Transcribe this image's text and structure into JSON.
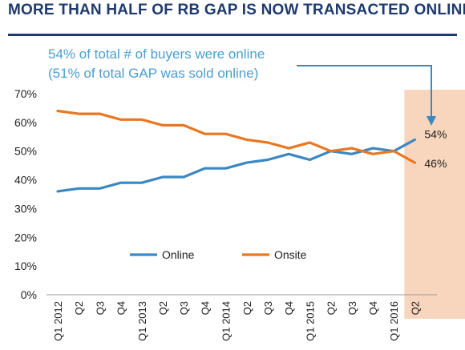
{
  "header": {
    "title": "MORE THAN HALF OF RB GAP IS NOW TRANSACTED ONLINE:"
  },
  "annotation": {
    "line1": "54% of total # of buyers were online",
    "line2": "(51% of total GAP was sold online)"
  },
  "colors": {
    "title": "#1f3a6e",
    "online": "#3b87c2",
    "onsite": "#e87722",
    "highlight": "#f8d5bd",
    "annotation": "#4a9fd0"
  },
  "chart_data": {
    "type": "line",
    "categories": [
      "Q1 2012",
      "Q2",
      "Q3",
      "Q4",
      "Q1 2013",
      "Q2",
      "Q3",
      "Q4",
      "Q1 2014",
      "Q2",
      "Q3",
      "Q4",
      "Q1 2015",
      "Q2",
      "Q3",
      "Q4",
      "Q1 2016",
      "Q2"
    ],
    "series": [
      {
        "name": "Online",
        "values": [
          36,
          37,
          37,
          39,
          39,
          41,
          41,
          44,
          44,
          46,
          47,
          49,
          47,
          50,
          49,
          51,
          50,
          54
        ]
      },
      {
        "name": "Onsite",
        "values": [
          64,
          63,
          63,
          61,
          61,
          59,
          59,
          56,
          56,
          54,
          53,
          51,
          53,
          50,
          51,
          49,
          50,
          46
        ]
      }
    ],
    "ylim": [
      0,
      70
    ],
    "yticks": [
      "0%",
      "10%",
      "20%",
      "30%",
      "40%",
      "50%",
      "60%",
      "70%"
    ],
    "end_labels": [
      "54%",
      "46%"
    ],
    "legend_position": "bottom-center",
    "highlight": "last category shaded"
  }
}
